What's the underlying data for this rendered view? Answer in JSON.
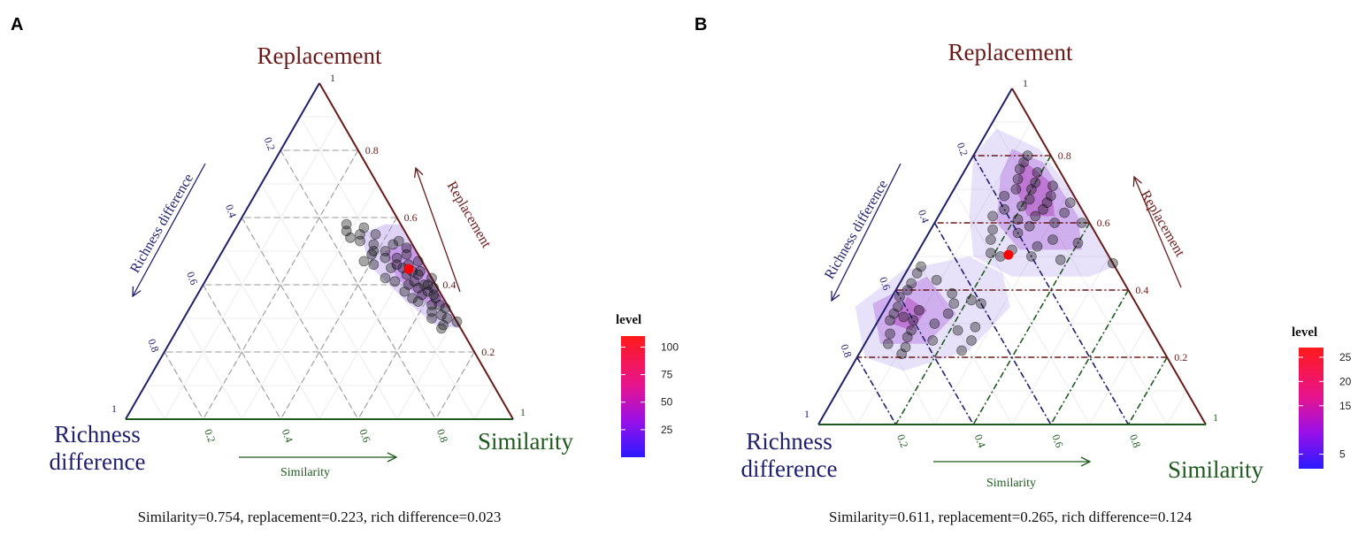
{
  "colors": {
    "replacement": "#6b1a1a",
    "richness": "#1f1f6e",
    "similarity": "#1e5a1e",
    "mean_point": "#ff0000",
    "points": "#000000"
  },
  "chart_data": [
    {
      "type": "scatter",
      "chart_kind": "ternary",
      "panel_label": "A",
      "axes": {
        "top": {
          "title": "Replacement",
          "arrow_label": "Replacement"
        },
        "left": {
          "title_line1": "Richness",
          "title_line2": "difference",
          "arrow_label": "Richness difference"
        },
        "right": {
          "title": "Similarity",
          "arrow_label": "Similarity"
        }
      },
      "ticks": [
        "0.2",
        "0.4",
        "0.6",
        "0.8"
      ],
      "corner_tick": "1",
      "grid_style": "grey-dashed",
      "legend": {
        "title": "level",
        "labels": [
          "100",
          "75",
          "50",
          "25"
        ],
        "values": [
          100,
          75,
          50,
          25
        ],
        "range": [
          0,
          110
        ],
        "placement": "right"
      },
      "caption": "Similarity=0.754, replacement=0.223, rich difference=0.023",
      "mean_point": [
        0.447,
        0.046
      ],
      "point_format": "[replacement, richness_difference]",
      "points": [
        [
          0.58,
          0.14
        ],
        [
          0.56,
          0.15
        ],
        [
          0.55,
          0.12
        ],
        [
          0.57,
          0.1
        ],
        [
          0.54,
          0.15
        ],
        [
          0.53,
          0.13
        ],
        [
          0.52,
          0.1
        ],
        [
          0.55,
          0.08
        ],
        [
          0.5,
          0.08
        ],
        [
          0.52,
          0.05
        ],
        [
          0.49,
          0.12
        ],
        [
          0.47,
          0.15
        ],
        [
          0.46,
          0.13
        ],
        [
          0.48,
          0.06
        ],
        [
          0.46,
          0.04
        ],
        [
          0.45,
          0.09
        ],
        [
          0.44,
          0.02
        ],
        [
          0.43,
          0.06
        ],
        [
          0.42,
          0.12
        ],
        [
          0.41,
          0.1
        ],
        [
          0.4,
          0.03
        ],
        [
          0.4,
          0.07
        ],
        [
          0.39,
          0.01
        ],
        [
          0.38,
          0.09
        ],
        [
          0.37,
          0.05
        ],
        [
          0.36,
          0.02
        ],
        [
          0.35,
          0.07
        ],
        [
          0.34,
          0.04
        ],
        [
          0.33,
          0.01
        ],
        [
          0.32,
          0.05
        ],
        [
          0.31,
          0.03
        ],
        [
          0.3,
          0.02
        ],
        [
          0.29,
          0.0
        ],
        [
          0.28,
          0.04
        ],
        [
          0.3,
          0.06
        ],
        [
          0.27,
          0.05
        ],
        [
          0.51,
          0.02
        ],
        [
          0.49,
          0.03
        ],
        [
          0.47,
          0.01
        ],
        [
          0.43,
          0.03
        ],
        [
          0.45,
          0.06
        ],
        [
          0.42,
          0.0
        ],
        [
          0.38,
          0.03
        ],
        [
          0.36,
          0.08
        ],
        [
          0.5,
          0.11
        ],
        [
          0.53,
          0.03
        ],
        [
          0.41,
          0.05
        ],
        [
          0.39,
          0.05
        ],
        [
          0.44,
          0.04
        ],
        [
          0.46,
          0.07
        ],
        [
          0.48,
          0.09
        ],
        [
          0.4,
          0.02
        ],
        [
          0.37,
          0.02
        ],
        [
          0.34,
          0.02
        ]
      ],
      "density_contours": [
        [
          [
            0.58,
            0.04
          ],
          [
            0.55,
            0.12
          ],
          [
            0.45,
            0.14
          ],
          [
            0.35,
            0.1
          ],
          [
            0.28,
            0.06
          ],
          [
            0.27,
            0.0
          ],
          [
            0.58,
            0.0
          ]
        ],
        [
          [
            0.52,
            0.02
          ],
          [
            0.5,
            0.08
          ],
          [
            0.42,
            0.09
          ],
          [
            0.34,
            0.05
          ],
          [
            0.33,
            0.0
          ],
          [
            0.52,
            0.0
          ]
        ]
      ]
    },
    {
      "type": "scatter",
      "chart_kind": "ternary",
      "panel_label": "B",
      "axes": {
        "top": {
          "title": "Replacement",
          "arrow_label": "Replacement"
        },
        "left": {
          "title_line1": "Richness",
          "title_line2": "difference",
          "arrow_label": "Richness difference"
        },
        "right": {
          "title": "Similarity",
          "arrow_label": "Similarity"
        }
      },
      "ticks": [
        "0.2",
        "0.4",
        "0.6",
        "0.8"
      ],
      "corner_tick": "1",
      "grid_style": "colored-dashdot",
      "legend": {
        "title": "level",
        "labels": [
          "25",
          "20",
          "15",
          "5"
        ],
        "values": [
          25,
          20,
          15,
          5
        ],
        "range": [
          2,
          27
        ],
        "placement": "right"
      },
      "caption": "Similarity=0.611, replacement=0.265, rich difference=0.124",
      "mean_point": [
        0.505,
        0.257
      ],
      "point_format": "[replacement, richness_difference]",
      "points": [
        [
          0.8,
          0.06
        ],
        [
          0.78,
          0.08
        ],
        [
          0.76,
          0.1
        ],
        [
          0.75,
          0.06
        ],
        [
          0.73,
          0.12
        ],
        [
          0.72,
          0.08
        ],
        [
          0.71,
          0.04
        ],
        [
          0.7,
          0.14
        ],
        [
          0.7,
          0.1
        ],
        [
          0.68,
          0.06
        ],
        [
          0.68,
          0.18
        ],
        [
          0.67,
          0.12
        ],
        [
          0.66,
          0.08
        ],
        [
          0.66,
          0.02
        ],
        [
          0.65,
          0.15
        ],
        [
          0.64,
          0.2
        ],
        [
          0.64,
          0.1
        ],
        [
          0.63,
          0.05
        ],
        [
          0.62,
          0.13
        ],
        [
          0.62,
          0.24
        ],
        [
          0.61,
          0.18
        ],
        [
          0.6,
          0.09
        ],
        [
          0.6,
          0.02
        ],
        [
          0.58,
          0.26
        ],
        [
          0.57,
          0.2
        ],
        [
          0.55,
          0.12
        ],
        [
          0.54,
          0.06
        ],
        [
          0.53,
          0.17
        ],
        [
          0.52,
          0.24
        ],
        [
          0.51,
          0.3
        ],
        [
          0.5,
          0.28
        ],
        [
          0.5,
          0.2
        ],
        [
          0.49,
          0.13
        ],
        [
          0.48,
          0.0
        ],
        [
          0.55,
          0.28
        ],
        [
          0.59,
          0.16
        ],
        [
          0.47,
          0.5
        ],
        [
          0.45,
          0.52
        ],
        [
          0.43,
          0.48
        ],
        [
          0.42,
          0.55
        ],
        [
          0.4,
          0.57
        ],
        [
          0.39,
          0.46
        ],
        [
          0.38,
          0.6
        ],
        [
          0.37,
          0.42
        ],
        [
          0.36,
          0.4
        ],
        [
          0.35,
          0.62
        ],
        [
          0.34,
          0.57
        ],
        [
          0.33,
          0.64
        ],
        [
          0.32,
          0.62
        ],
        [
          0.31,
          0.6
        ],
        [
          0.31,
          0.66
        ],
        [
          0.3,
          0.55
        ],
        [
          0.29,
          0.45
        ],
        [
          0.28,
          0.62
        ],
        [
          0.27,
          0.68
        ],
        [
          0.26,
          0.64
        ],
        [
          0.25,
          0.58
        ],
        [
          0.25,
          0.48
        ],
        [
          0.24,
          0.7
        ],
        [
          0.23,
          0.66
        ],
        [
          0.22,
          0.52
        ],
        [
          0.21,
          0.68
        ],
        [
          0.36,
          0.47
        ],
        [
          0.33,
          0.5
        ],
        [
          0.28,
          0.5
        ]
      ],
      "density_contours": [
        [
          [
            0.88,
            0.1
          ],
          [
            0.82,
            0.02
          ],
          [
            0.7,
            0.0
          ],
          [
            0.47,
            0.0
          ],
          [
            0.44,
            0.08
          ],
          [
            0.44,
            0.28
          ],
          [
            0.5,
            0.35
          ],
          [
            0.62,
            0.3
          ],
          [
            0.8,
            0.2
          ]
        ],
        [
          [
            0.5,
            0.36
          ],
          [
            0.46,
            0.55
          ],
          [
            0.35,
            0.73
          ],
          [
            0.2,
            0.78
          ],
          [
            0.16,
            0.7
          ],
          [
            0.22,
            0.5
          ],
          [
            0.35,
            0.33
          ],
          [
            0.45,
            0.3
          ]
        ],
        [
          [
            0.82,
            0.09
          ],
          [
            0.78,
            0.03
          ],
          [
            0.62,
            0.02
          ],
          [
            0.52,
            0.06
          ],
          [
            0.52,
            0.22
          ],
          [
            0.6,
            0.24
          ],
          [
            0.74,
            0.16
          ]
        ],
        [
          [
            0.44,
            0.5
          ],
          [
            0.36,
            0.68
          ],
          [
            0.24,
            0.72
          ],
          [
            0.24,
            0.6
          ],
          [
            0.33,
            0.48
          ]
        ],
        [
          [
            0.79,
            0.08
          ],
          [
            0.72,
            0.04
          ],
          [
            0.62,
            0.08
          ],
          [
            0.62,
            0.15
          ],
          [
            0.7,
            0.14
          ]
        ],
        [
          [
            0.38,
            0.58
          ],
          [
            0.3,
            0.66
          ],
          [
            0.28,
            0.62
          ],
          [
            0.34,
            0.55
          ]
        ]
      ]
    }
  ]
}
